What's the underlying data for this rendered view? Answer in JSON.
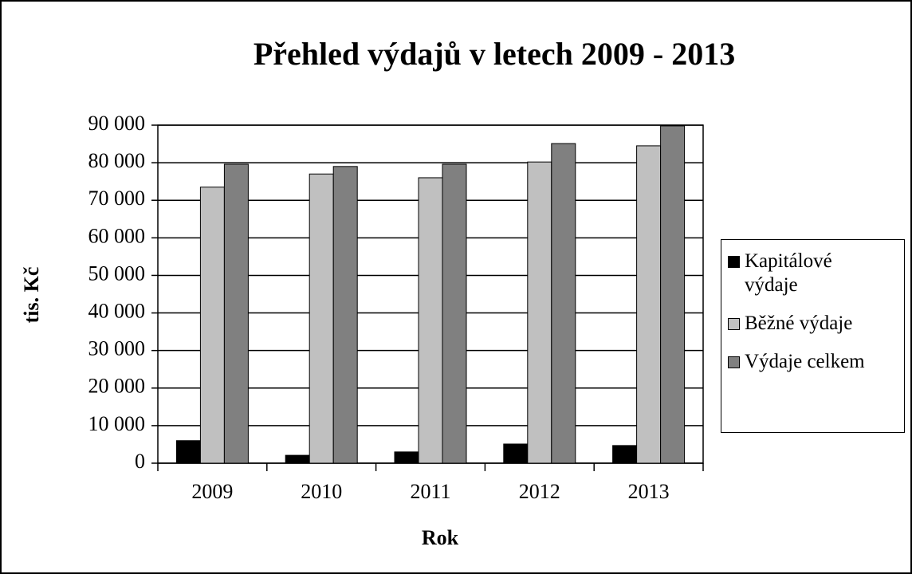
{
  "chart_data": {
    "type": "bar",
    "title": "Přehled výdajů v letech 2009 - 2013",
    "x_label": "Rok",
    "y_label": "tis. Kč",
    "categories": [
      "2009",
      "2010",
      "2011",
      "2012",
      "2013"
    ],
    "series": [
      {
        "name": "Kapitálové výdaje",
        "color": "#000000",
        "values": [
          6000,
          2100,
          3000,
          5100,
          4700
        ]
      },
      {
        "name": "Běžné výdaje",
        "color": "#c0c0c0",
        "values": [
          73500,
          77000,
          76000,
          80200,
          84500
        ]
      },
      {
        "name": "Výdaje celkem",
        "color": "#808080",
        "values": [
          79600,
          79000,
          79600,
          85100,
          89800
        ]
      }
    ],
    "ylim": [
      0,
      90000
    ],
    "yticks": [
      0,
      {
        "value": 10000,
        "label": "10 000"
      },
      {
        "value": 20000,
        "label": "20 000"
      },
      {
        "value": 30000,
        "label": "30 000"
      },
      {
        "value": 40000,
        "label": "40 000"
      },
      {
        "value": 50000,
        "label": "50 000"
      },
      {
        "value": 60000,
        "label": "60 000"
      },
      {
        "value": 70000,
        "label": "70 000"
      },
      {
        "value": 80000,
        "label": "80 000"
      },
      {
        "value": 90000,
        "label": "90 000"
      }
    ],
    "grid": true,
    "legend": "right"
  }
}
